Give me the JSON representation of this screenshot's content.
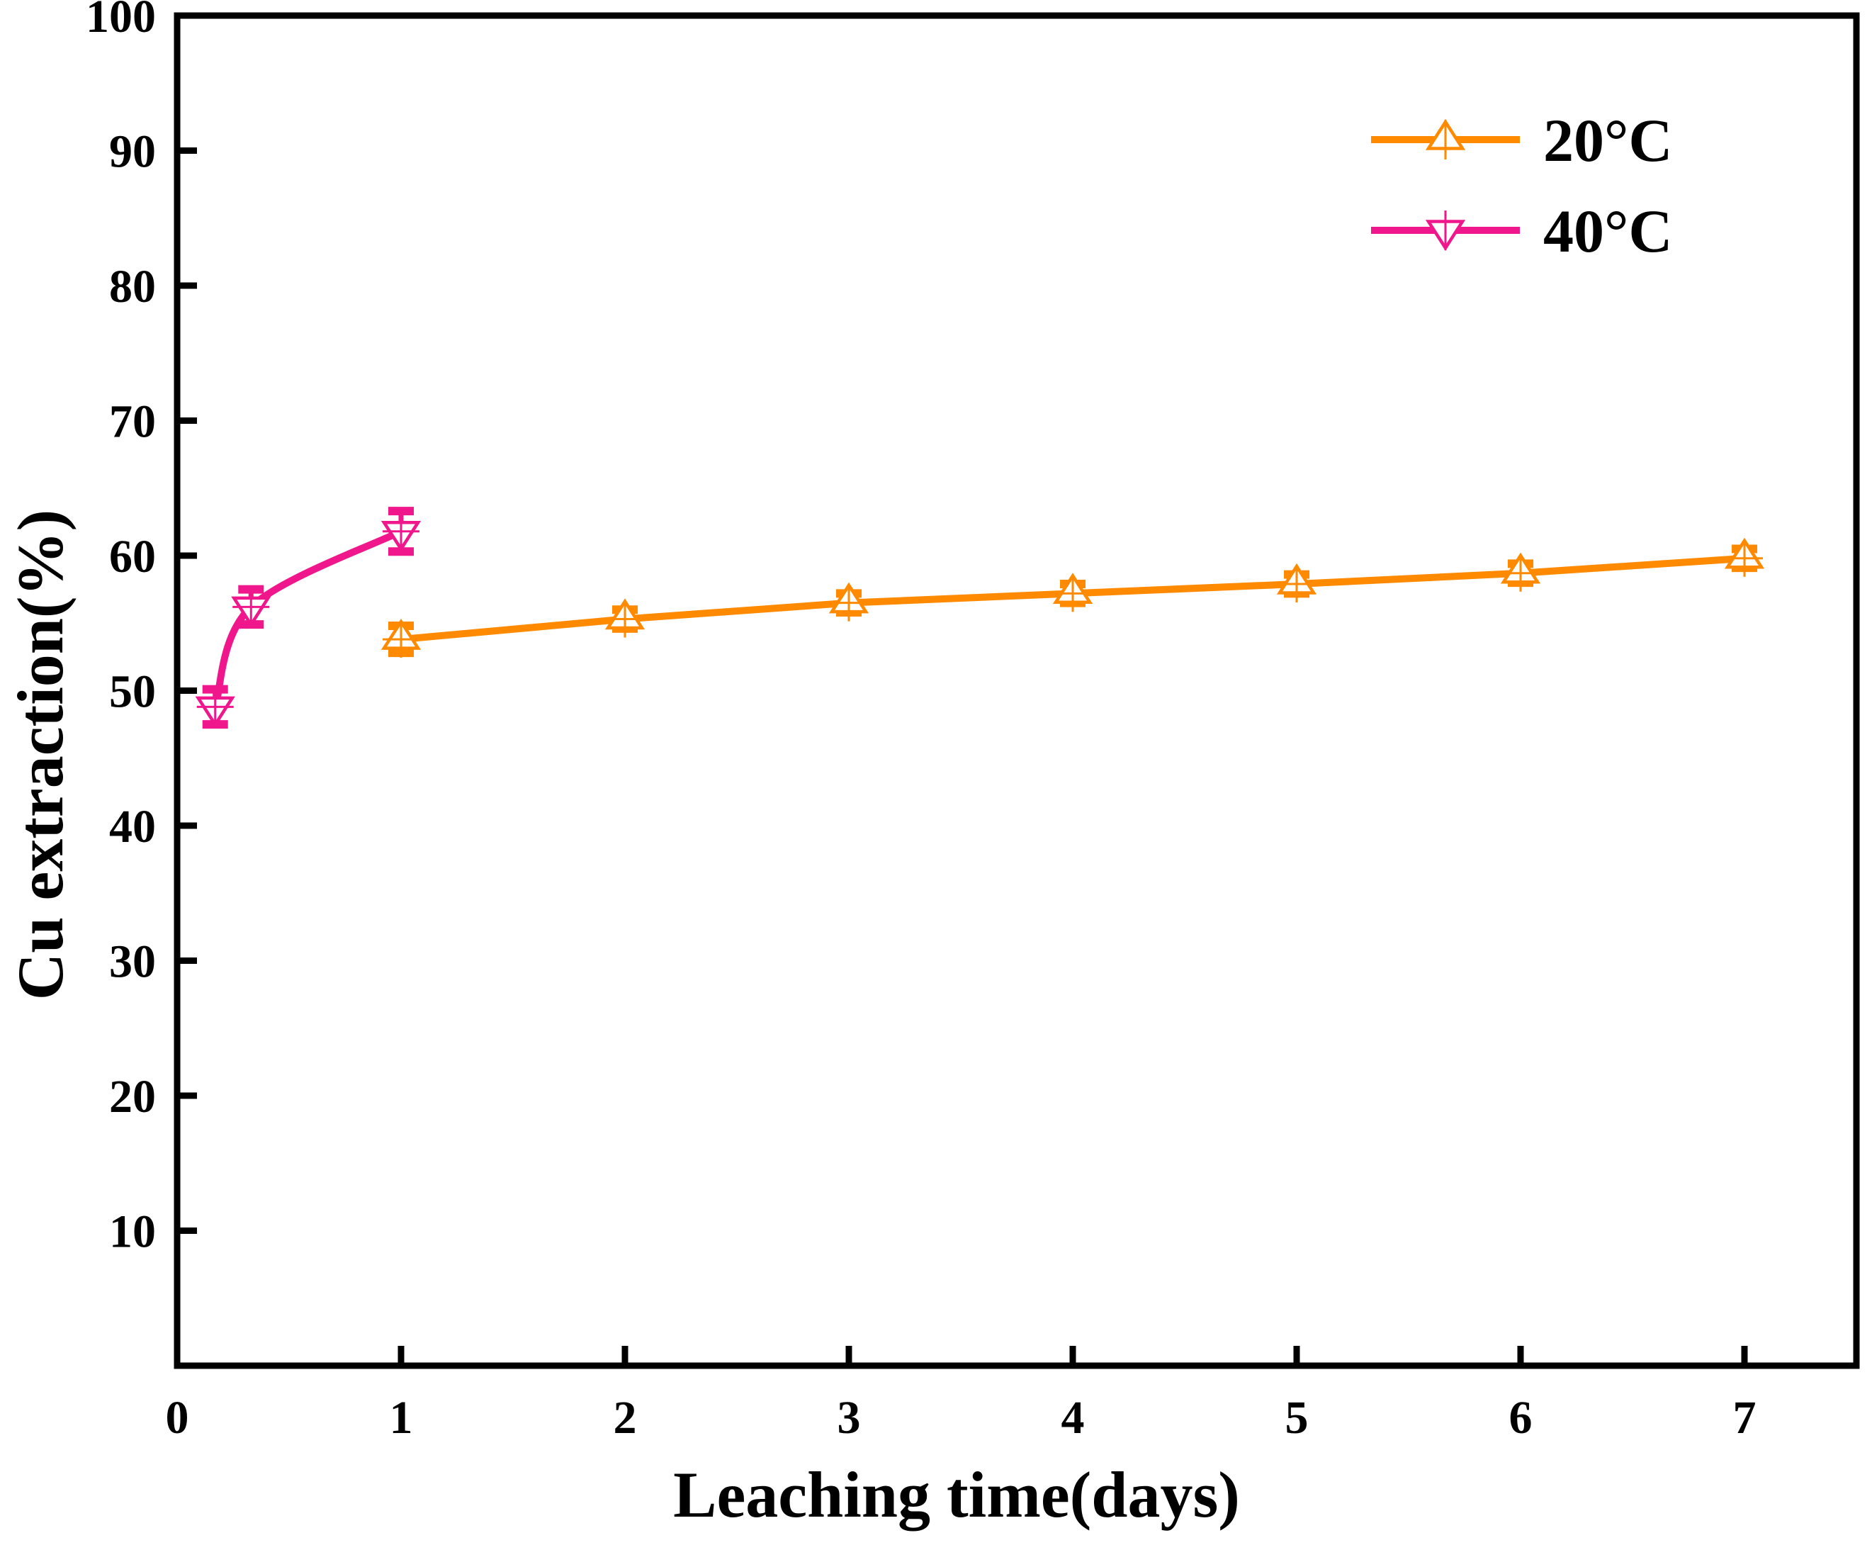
{
  "chart_data": {
    "type": "line",
    "title": "",
    "xlabel": "Leaching time(days)",
    "ylabel": "Cu extraction(%)",
    "xlim": [
      0,
      7.5
    ],
    "ylim": [
      0,
      100
    ],
    "x_ticks": [
      0,
      1,
      2,
      3,
      4,
      5,
      6,
      7
    ],
    "y_ticks": [
      10,
      20,
      30,
      40,
      50,
      60,
      70,
      80,
      90,
      100
    ],
    "x_tick_labels": [
      "0",
      "1",
      "2",
      "3",
      "4",
      "5",
      "6",
      "7"
    ],
    "y_tick_labels": [
      "10",
      "20",
      "30",
      "40",
      "50",
      "60",
      "70",
      "80",
      "90",
      "100"
    ],
    "legend_position": "top-right",
    "series": [
      {
        "name": "20°C",
        "color": "#ff8a00",
        "marker": "triangle-up",
        "smooth": false,
        "x": [
          1,
          2,
          3,
          4,
          5,
          6,
          7
        ],
        "values": [
          53.8,
          55.3,
          56.5,
          57.2,
          57.9,
          58.7,
          59.8
        ],
        "errors": [
          1.0,
          0.7,
          0.7,
          0.7,
          0.7,
          0.7,
          0.7
        ]
      },
      {
        "name": "40°C",
        "color": "#f0168c",
        "marker": "triangle-down",
        "smooth": true,
        "x": [
          0.17,
          0.33,
          1
        ],
        "values": [
          48.8,
          56.2,
          61.8
        ],
        "errors": [
          1.3,
          1.3,
          1.5
        ]
      }
    ]
  }
}
